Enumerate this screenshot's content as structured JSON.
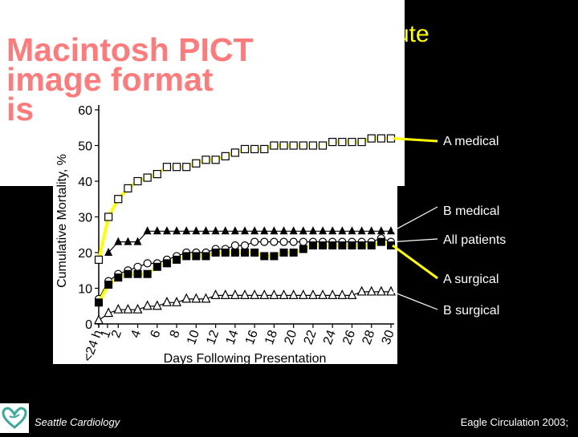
{
  "slide": {
    "title_fragment": "cute",
    "pict_notice": [
      "Macintosh PICT",
      "image format",
      "is"
    ],
    "footer_left": "Seattle Cardiology",
    "footer_right": "Eagle Circulation 2003;"
  },
  "colors": {
    "highlight": "#ffff00",
    "background": "#000000",
    "pict_text": "#ff7b7b"
  },
  "icons": {
    "logo": "heart-icon"
  },
  "chart_data": {
    "type": "line",
    "ylabel": "Cumulative Mortality, %",
    "xlabel": "Days Following Presentation",
    "ylim": [
      0,
      60
    ],
    "y_ticks": [
      0,
      10,
      20,
      30,
      40,
      50,
      60
    ],
    "x_ticks": [
      "<24 h",
      "1",
      "2",
      "4",
      "6",
      "8",
      "10",
      "12",
      "14",
      "16",
      "18",
      "20",
      "22",
      "24",
      "26",
      "28",
      "30"
    ],
    "series": [
      {
        "name": "A medical",
        "marker": "open-square",
        "highlighted": true,
        "x": [
          0,
          1,
          2,
          3,
          4,
          5,
          6,
          7,
          8,
          9,
          10,
          11,
          12,
          13,
          14,
          15,
          16,
          17,
          18,
          19,
          20,
          21,
          22,
          23,
          24,
          25,
          26,
          27,
          28,
          29,
          30
        ],
        "values": [
          18,
          30,
          35,
          38,
          40,
          41,
          42,
          44,
          44,
          44,
          45,
          46,
          46,
          47,
          48,
          49,
          49,
          49,
          50,
          50,
          50,
          50,
          50,
          50,
          51,
          51,
          51,
          51,
          52,
          52,
          52
        ]
      },
      {
        "name": "B medical",
        "marker": "filled-triangle",
        "highlighted": false,
        "x": [
          1,
          2,
          3,
          4,
          5,
          6,
          7,
          8,
          9,
          10,
          11,
          12,
          13,
          14,
          15,
          16,
          17,
          18,
          19,
          20,
          21,
          22,
          23,
          24,
          25,
          26,
          27,
          28,
          29,
          30
        ],
        "values": [
          20,
          23,
          23,
          23,
          26,
          26,
          26,
          26,
          26,
          26,
          26,
          26,
          26,
          26,
          26,
          26,
          26,
          26,
          26,
          26,
          26,
          26,
          26,
          26,
          26,
          26,
          26,
          26,
          26,
          26
        ]
      },
      {
        "name": "All patients",
        "marker": "open-circle",
        "highlighted": false,
        "x": [
          0,
          1,
          2,
          3,
          4,
          5,
          6,
          7,
          8,
          9,
          10,
          11,
          12,
          13,
          14,
          15,
          16,
          17,
          18,
          19,
          20,
          21,
          22,
          23,
          24,
          25,
          26,
          27,
          28,
          29,
          30
        ],
        "values": [
          7,
          12,
          14,
          15,
          16,
          17,
          17,
          18,
          19,
          20,
          20,
          20,
          21,
          21,
          22,
          22,
          23,
          23,
          23,
          23,
          23,
          23,
          23,
          23,
          23,
          23,
          23,
          23,
          23,
          24,
          23
        ]
      },
      {
        "name": "A surgical",
        "marker": "filled-square",
        "highlighted": true,
        "x": [
          0,
          1,
          2,
          3,
          4,
          5,
          6,
          7,
          8,
          9,
          10,
          11,
          12,
          13,
          14,
          15,
          16,
          17,
          18,
          19,
          20,
          21,
          22,
          23,
          24,
          25,
          26,
          27,
          28,
          29,
          30
        ],
        "values": [
          6,
          11,
          13,
          14,
          14,
          14,
          16,
          17,
          18,
          19,
          19,
          19,
          20,
          20,
          20,
          20,
          20,
          19,
          19,
          20,
          20,
          21,
          22,
          22,
          22,
          22,
          22,
          22,
          22,
          23,
          22
        ]
      },
      {
        "name": "B surgical",
        "marker": "open-triangle",
        "highlighted": false,
        "x": [
          0,
          1,
          2,
          3,
          4,
          5,
          6,
          7,
          8,
          9,
          10,
          11,
          12,
          13,
          14,
          15,
          16,
          17,
          18,
          19,
          20,
          21,
          22,
          23,
          24,
          25,
          26,
          27,
          28,
          29,
          30
        ],
        "values": [
          1,
          3,
          4,
          4,
          4,
          5,
          5,
          6,
          6,
          7,
          7,
          7,
          8,
          8,
          8,
          8,
          8,
          8,
          8,
          8,
          8,
          8,
          8,
          8,
          8,
          8,
          8,
          9,
          9,
          9,
          9
        ]
      }
    ]
  }
}
